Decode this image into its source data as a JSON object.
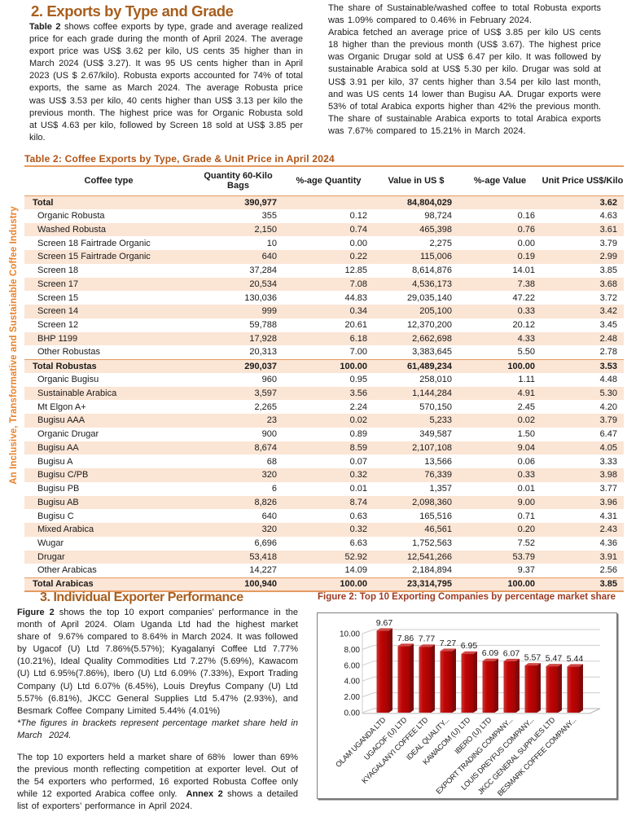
{
  "colors": {
    "heading": "#A85E1D",
    "table_caption": "#B05315",
    "figure_caption": "#9C3B22",
    "sidebar_text": "#E8832C",
    "table_border": "#E49B61",
    "row_shade": "#FBE5D5",
    "bar_front": "#C00505",
    "bar_front_light": "#C93430",
    "bar_front_dark": "#A00303",
    "bar_side": "#7D0A0A",
    "bar_top": "#CE4845",
    "grid": "#CDCDCD",
    "axis": "#B5B5B5",
    "text": "#1a1a1a"
  },
  "sidebar_text": "An Inclusive, Transformative and Sustainable Coffee Industry",
  "section2": {
    "heading": "2. Exports by Type and Grade",
    "left_paragraphs": [
      [
        {
          "t": "Table 2",
          "b": true
        },
        {
          "t": " shows coffee exports by type, grade and average realized price for each grade during the month of April 2024. The average export price was US$ 3.62 per kilo, US cents 35 higher than in March 2024 (US$ 3.27). It was 95 US cents higher than in April 2023 (US $ 2.67/kilo). Robusta exports accounted for 74% of total exports, the same as March 2024. The average Robusta price was US$ 3.53 per kilo, 40 cents higher than US$ 3.13 per kilo the previous month. The highest price was for Organic Robusta sold at US$ 4.63 per kilo, followed by Screen 18 sold at US$ 3.85 per kilo."
        }
      ]
    ],
    "right_paragraphs": [
      [
        {
          "t": "The share of Sustainable/washed coffee to total Robusta exports was 1.09% compared to 0.46% in February 2024."
        }
      ],
      [
        {
          "t": "Arabica fetched an average price of US$ 3.85 per kilo US cents 18 higher than the previous month (US$ 3.67). The highest price was Organic Drugar sold at US$ 6.47 per kilo. It was followed by sustainable Arabica sold at US$ 5.30 per kilo. Drugar was sold at US$ 3.91 per kilo, 37 cents higher than 3.54 per kilo last month, and was US cents 14 lower than Bugisu AA. Drugar exports were 53% of total Arabica exports higher than 42% the previous month. The share of sustainable Arabica exports to total Arabica exports was 7.67% compared to 15.21% in March 2024."
        }
      ]
    ]
  },
  "table": {
    "caption": "Table 2: Coffee Exports by Type, Grade & Unit Price in April 2024",
    "columns": [
      "Coffee type",
      "Quantity 60-Kilo Bags",
      "%-age Quantity",
      "Value in US $",
      "%-age  Value",
      "Unit Price US$/Kilo"
    ],
    "rows": [
      {
        "cells": [
          "Total",
          "390,977",
          "",
          "84,804,029",
          "",
          "3.62"
        ],
        "total": true
      },
      {
        "cells": [
          "Organic Robusta",
          "355",
          "0.12",
          "98,724",
          "0.16",
          "4.63"
        ]
      },
      {
        "cells": [
          "Washed Robusta",
          "2,150",
          "0.74",
          "465,398",
          "0.76",
          "3.61"
        ]
      },
      {
        "cells": [
          "Screen 18 Fairtrade Organic",
          "10",
          "0.00",
          "2,275",
          "0.00",
          "3.79"
        ]
      },
      {
        "cells": [
          "Screen 15 Fairtrade Organic",
          "640",
          "0.22",
          "115,006",
          "0.19",
          "2.99"
        ]
      },
      {
        "cells": [
          "Screen 18",
          "37,284",
          "12.85",
          "8,614,876",
          "14.01",
          "3.85"
        ]
      },
      {
        "cells": [
          "Screen 17",
          "20,534",
          "7.08",
          "4,536,173",
          "7.38",
          "3.68"
        ]
      },
      {
        "cells": [
          "Screen 15",
          "130,036",
          "44.83",
          "29,035,140",
          "47.22",
          "3.72"
        ]
      },
      {
        "cells": [
          "Screen 14",
          "999",
          "0.34",
          "205,100",
          "0.33",
          "3.42"
        ]
      },
      {
        "cells": [
          "Screen 12",
          "59,788",
          "20.61",
          "12,370,200",
          "20.12",
          "3.45"
        ]
      },
      {
        "cells": [
          "BHP 1199",
          "17,928",
          "6.18",
          "2,662,698",
          "4.33",
          "2.48"
        ]
      },
      {
        "cells": [
          "Other Robustas",
          "20,313",
          "7.00",
          "3,383,645",
          "5.50",
          "2.78"
        ]
      },
      {
        "cells": [
          "Total Robustas",
          "290,037",
          "100.00",
          "61,489,234",
          "100.00",
          "3.53"
        ],
        "total": true,
        "topline": true
      },
      {
        "cells": [
          "Organic Bugisu",
          "960",
          "0.95",
          "258,010",
          "1.11",
          "4.48"
        ]
      },
      {
        "cells": [
          "Sustainable Arabica",
          "3,597",
          "3.56",
          "1,144,284",
          "4.91",
          "5.30"
        ]
      },
      {
        "cells": [
          "Mt Elgon A+",
          "2,265",
          "2.24",
          "570,150",
          "2.45",
          "4.20"
        ]
      },
      {
        "cells": [
          "Bugisu AAA",
          "23",
          "0.02",
          "5,233",
          "0.02",
          "3.79"
        ]
      },
      {
        "cells": [
          "Organic Drugar",
          "900",
          "0.89",
          "349,587",
          "1.50",
          "6.47"
        ]
      },
      {
        "cells": [
          "Bugisu AA",
          "8,674",
          "8.59",
          "2,107,108",
          "9.04",
          "4.05"
        ]
      },
      {
        "cells": [
          "Bugisu A",
          "68",
          "0.07",
          "13,566",
          "0.06",
          "3.33"
        ]
      },
      {
        "cells": [
          "Bugisu C/PB",
          "320",
          "0.32",
          "76,339",
          "0.33",
          "3.98"
        ]
      },
      {
        "cells": [
          "Bugisu PB",
          "6",
          "0.01",
          "1,357",
          "0.01",
          "3.77"
        ]
      },
      {
        "cells": [
          "Bugisu AB",
          "8,826",
          "8.74",
          "2,098,360",
          "9.00",
          "3.96"
        ]
      },
      {
        "cells": [
          "Bugisu C",
          "640",
          "0.63",
          "165,516",
          "0.71",
          "4.31"
        ]
      },
      {
        "cells": [
          "Mixed Arabica",
          "320",
          "0.32",
          "46,561",
          "0.20",
          "2.43"
        ]
      },
      {
        "cells": [
          "Wugar",
          "6,696",
          "6.63",
          "1,752,563",
          "7.52",
          "4.36"
        ]
      },
      {
        "cells": [
          "Drugar",
          "53,418",
          "52.92",
          "12,541,266",
          "53.79",
          "3.91"
        ]
      },
      {
        "cells": [
          "Other Arabicas",
          "14,227",
          "14.09",
          "2,184,894",
          "9.37",
          "2.56"
        ]
      },
      {
        "cells": [
          "Total Arabicas",
          "100,940",
          "100.00",
          "23,314,795",
          "100.00",
          "3.85"
        ],
        "total": true,
        "topline": true
      }
    ]
  },
  "section3": {
    "heading": "3. Individual Exporter Performance",
    "paragraphs": [
      [
        {
          "t": "Figure 2",
          "b": true
        },
        {
          "t": " shows the top 10 export companies’ performance in the month of April 2024. Olam Uganda Ltd had the highest market share of  9.67% compared to 8.64% in March 2024. It was followed by Ugacof (U) Ltd 7.86%(5.57%); Kyagalanyi Coffee Ltd 7.77% (10.21%), Ideal Quality Commodities Ltd 7.27% (5.69%), Kawacom (U) Ltd 6.95%(7.86%), Ibero (U) Ltd 6.09% (7.33%), Export Trading Company (U) Ltd 6.07% (6.45%), Louis Dreyfus Company (U) Ltd 5.57% (6.81%), JKCC General Supplies Ltd 5.47% (2.93%), and Besmark Coffee Company Limited 5.44% (4.01%)"
        }
      ],
      [
        {
          "t": "*The figures in brackets represent percentage market share held in March  2024.",
          "i": true
        }
      ],
      [
        {
          "t": "The top 10 exporters held a market share of 68%  lower than 69% the previous month reflecting competition at exporter level. Out of the 54 exporters who performed, 16 exported Robusta Coffee only while 12 exported Arabica coffee only.  ",
          "gap": true
        },
        {
          "t": "Annex 2",
          "b": true
        },
        {
          "t": " shows a detailed list of exporters’ performance in April 2024."
        }
      ]
    ]
  },
  "chart_data": {
    "type": "bar",
    "title": "Figure 2: Top 10 Exporting Companies by percentage market share",
    "categories": [
      "OLAM UGANDA LTD",
      "UGACOF (U) LTD",
      "KYAGALANYI COFFEE LTD",
      "IDEAL QUALITY...",
      "KAWACOM (U) LTD",
      "IBERO (U) LTD",
      "EXPORT TRADING COMPANY...",
      "LOUIS DREYFUS COMPANY...",
      "JKCC GENERAL SUPPLIES LTD",
      "BESMARK COFFEE COMPANY..."
    ],
    "values": [
      9.67,
      7.86,
      7.77,
      7.27,
      6.95,
      6.09,
      6.07,
      5.57,
      5.47,
      5.44
    ],
    "data_labels": [
      "9.67",
      "7.86",
      "7.77",
      "7.27",
      "6.95",
      "6.09",
      "6.07",
      "5.57",
      "5.47",
      "5.44"
    ],
    "ylabel": "",
    "xlabel": "",
    "ylim": [
      0,
      10
    ],
    "yticks": [
      "0.00",
      "2.00",
      "4.00",
      "6.00",
      "8.00",
      "10.00"
    ],
    "grid": true,
    "legend": false
  }
}
